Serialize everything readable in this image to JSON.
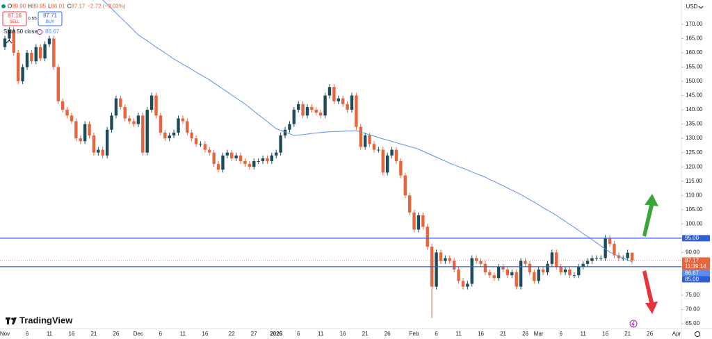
{
  "header": {
    "ohlc": [
      "O",
      "89.90",
      "H",
      "89.95",
      "L",
      "86.01",
      "C",
      "87.17",
      "−2.72 (−3.03%)"
    ]
  },
  "trade": {
    "sell_price": "87.16",
    "sell": "SELL",
    "spread": "0.55",
    "buy_price": "87.71",
    "buy": "BUY"
  },
  "brand": "TradingView",
  "chart_data": {
    "type": "candlestick",
    "currency": "USD",
    "categories": [
      "Nov",
      null,
      null,
      null,
      null,
      "6",
      null,
      null,
      null,
      null,
      "11",
      null,
      null,
      null,
      null,
      "16",
      null,
      null,
      null,
      null,
      "21",
      null,
      null,
      null,
      null,
      "26",
      null,
      null,
      null,
      null,
      "Dec",
      null,
      null,
      null,
      null,
      "6",
      null,
      null,
      null,
      null,
      "11",
      null,
      null,
      null,
      null,
      "16",
      null,
      null,
      null,
      null,
      null,
      "22",
      null,
      null,
      null,
      null,
      "27",
      null,
      null,
      null,
      null,
      "2026",
      null,
      null,
      null,
      null,
      "6",
      null,
      null,
      null,
      null,
      "11",
      null,
      null,
      null,
      null,
      "16",
      null,
      null,
      null,
      null,
      "21",
      null,
      null,
      null,
      null,
      "26",
      null,
      null,
      null,
      null,
      null,
      "Feb",
      null,
      null,
      null,
      null,
      "6",
      null,
      null,
      null,
      null,
      "11",
      null,
      null,
      null,
      null,
      "16",
      null,
      null,
      null,
      null,
      "21",
      null,
      null,
      null,
      null,
      "26",
      null,
      null,
      "Mar",
      null,
      null,
      null,
      null,
      "6",
      null,
      null,
      null,
      null,
      "11",
      null,
      null,
      null,
      null,
      "16",
      null,
      null,
      null,
      null,
      "21",
      null,
      null,
      null,
      null,
      "26",
      null,
      null,
      null,
      null,
      null,
      "Apr"
    ],
    "open": [
      162,
      165,
      168,
      160,
      150,
      155,
      160,
      157,
      162,
      158,
      163,
      165,
      155,
      143,
      140,
      138,
      136,
      130,
      129,
      135,
      131,
      125,
      126,
      124,
      133,
      138,
      144,
      141,
      137,
      136,
      135,
      138,
      125,
      140,
      145,
      138,
      132,
      130,
      131,
      132,
      137,
      136,
      132,
      130,
      128,
      128,
      126,
      125,
      121,
      119,
      124,
      125,
      123,
      124,
      122,
      121,
      120,
      122,
      122,
      123,
      122,
      124,
      125,
      131,
      133,
      135,
      140,
      142,
      138,
      141,
      140,
      139,
      138,
      145,
      148,
      143,
      144,
      142,
      140,
      145,
      134,
      127,
      131,
      128,
      126,
      126,
      118,
      124,
      126,
      122,
      117,
      110,
      104,
      98,
      103,
      99,
      92,
      78,
      90,
      87,
      88,
      87,
      84,
      80,
      78,
      79,
      88,
      87,
      86,
      83,
      82,
      81,
      85,
      84,
      82,
      83,
      78,
      87,
      86,
      83,
      80,
      84,
      83,
      86,
      90,
      85,
      83,
      84,
      82,
      82,
      85,
      86,
      87,
      88,
      88,
      88,
      95,
      93,
      89,
      88,
      88,
      89.9,
      null,
      null,
      null,
      null,
      null,
      null,
      null,
      null,
      null,
      null
    ],
    "high": [
      166,
      169,
      169,
      161,
      156,
      161,
      161,
      163,
      163,
      164,
      166,
      166,
      156,
      144,
      141,
      139,
      137,
      131,
      136,
      136,
      132,
      127,
      127,
      134,
      139,
      145,
      145,
      142,
      138,
      137,
      139,
      139,
      141,
      146,
      146,
      139,
      133,
      132,
      133,
      138,
      138,
      137,
      133,
      131,
      129,
      129,
      127,
      126,
      122,
      125,
      126,
      126,
      125,
      125,
      123,
      122,
      123,
      123,
      124,
      124,
      125,
      126,
      132,
      134,
      136,
      141,
      143,
      143,
      142,
      142,
      141,
      140,
      146,
      149,
      149,
      145,
      145,
      143,
      146,
      146,
      135,
      132,
      132,
      129,
      127,
      127,
      125,
      127,
      127,
      123,
      118,
      111,
      105,
      104,
      104,
      100,
      93,
      91,
      91,
      89,
      89,
      88,
      85,
      81,
      80,
      89,
      89,
      88,
      87,
      84,
      83,
      86,
      86,
      85,
      84,
      84,
      88,
      88,
      87,
      84,
      85,
      85,
      87,
      91,
      91,
      86,
      85,
      85,
      83,
      86,
      87,
      88,
      89,
      89,
      89,
      96,
      96,
      94,
      90,
      89,
      91,
      89.95,
      null,
      null,
      null,
      null,
      null,
      null,
      null,
      null,
      null,
      null
    ],
    "low": [
      161,
      164,
      159,
      149,
      149,
      154,
      156,
      156,
      157,
      157,
      162,
      154,
      142,
      139,
      137,
      135,
      129,
      128,
      128,
      130,
      124,
      124,
      123,
      123,
      132,
      137,
      140,
      136,
      135,
      134,
      134,
      124,
      124,
      139,
      137,
      131,
      129,
      129,
      130,
      131,
      135,
      131,
      129,
      127,
      127,
      125,
      124,
      120,
      118,
      118,
      123,
      122,
      122,
      121,
      120,
      119,
      119,
      121,
      121,
      121,
      121,
      123,
      124,
      130,
      132,
      134,
      139,
      137,
      137,
      139,
      138,
      137,
      137,
      144,
      142,
      142,
      141,
      139,
      139,
      133,
      126,
      126,
      127,
      125,
      125,
      117,
      117,
      123,
      121,
      116,
      109,
      103,
      97,
      97,
      98,
      91,
      67,
      77,
      86,
      86,
      86,
      83,
      79,
      77,
      77,
      78,
      86,
      85,
      82,
      81,
      80,
      80,
      83,
      81,
      81,
      77,
      77,
      85,
      82,
      79,
      79,
      82,
      82,
      85,
      84,
      82,
      82,
      81,
      81,
      81,
      84,
      85,
      86,
      87,
      87,
      87,
      92,
      88,
      87,
      87,
      87,
      86.01,
      null,
      null,
      null,
      null,
      null,
      null,
      null,
      null,
      null,
      null
    ],
    "close": [
      165,
      168,
      160,
      150,
      155,
      160,
      157,
      162,
      158,
      163,
      165,
      155,
      143,
      140,
      138,
      136,
      130,
      129,
      135,
      131,
      125,
      126,
      124,
      133,
      138,
      144,
      141,
      137,
      136,
      135,
      138,
      125,
      140,
      145,
      138,
      132,
      130,
      131,
      132,
      137,
      136,
      132,
      130,
      128,
      128,
      126,
      125,
      121,
      119,
      124,
      125,
      123,
      124,
      122,
      121,
      120,
      122,
      122,
      123,
      122,
      124,
      125,
      131,
      133,
      135,
      140,
      142,
      138,
      141,
      140,
      139,
      138,
      145,
      148,
      143,
      144,
      142,
      140,
      145,
      134,
      127,
      131,
      128,
      126,
      126,
      118,
      124,
      126,
      122,
      117,
      110,
      104,
      98,
      103,
      99,
      92,
      78,
      90,
      87,
      88,
      87,
      84,
      80,
      78,
      79,
      88,
      87,
      86,
      83,
      82,
      81,
      85,
      84,
      82,
      83,
      78,
      87,
      86,
      83,
      80,
      84,
      83,
      86,
      90,
      85,
      83,
      84,
      82,
      82,
      85,
      86,
      87,
      88,
      88,
      88,
      95,
      93,
      89,
      88,
      88,
      89.9,
      87.17,
      null,
      null,
      null,
      null,
      null,
      null,
      null,
      null,
      null,
      null
    ],
    "up_color": "#1d4b59",
    "down_color": "#e8643c",
    "sma": {
      "name": "SMA 50 close",
      "color": "#5b8def",
      "value_label": "86.67",
      "values": [
        null,
        null,
        null,
        null,
        null,
        null,
        null,
        null,
        null,
        null,
        null,
        null,
        null,
        null,
        null,
        null,
        null,
        null,
        null,
        null,
        null,
        null,
        178.5,
        177,
        175.5,
        173.9,
        172.4,
        170.9,
        169.4,
        167.8,
        166.3,
        165.2,
        164.2,
        163.1,
        162,
        161,
        159.9,
        158.9,
        157.8,
        156.9,
        156,
        155.1,
        154.2,
        153.2,
        152.3,
        151.4,
        150.5,
        149.4,
        148.4,
        147.3,
        146.3,
        145.2,
        144.1,
        143.1,
        142,
        140.8,
        139.5,
        138.3,
        137.1,
        135.9,
        134.6,
        133.4,
        132.8,
        132.2,
        131.6,
        131,
        131.2,
        131.3,
        131.5,
        131.7,
        131.9,
        132,
        132.2,
        132.3,
        132.4,
        132.4,
        132.5,
        132.6,
        132.6,
        132.7,
        132.2,
        131.7,
        131.2,
        130.8,
        130.3,
        129.8,
        129.4,
        128.9,
        128.5,
        128,
        127.6,
        127.1,
        126.7,
        126.2,
        125.5,
        124.8,
        124.1,
        123.4,
        122.7,
        122,
        121.3,
        120.7,
        120.1,
        119.5,
        118.9,
        118.2,
        117.6,
        117,
        116.4,
        115.6,
        114.9,
        114.1,
        113.4,
        112.6,
        111.8,
        111.1,
        110.3,
        109.4,
        108.5,
        107.6,
        106.7,
        105.7,
        104.8,
        103.9,
        103,
        101.9,
        100.9,
        99.8,
        98.8,
        97.7,
        96.6,
        95.6,
        94.5,
        93.4,
        92.3,
        91.2,
        90.1,
        89.4,
        88.7,
        88,
        87.4,
        86.67,
        null,
        null,
        null,
        null,
        null,
        null,
        null,
        null,
        null,
        null
      ]
    },
    "ylim": [
      63.3,
      178.5
    ],
    "yticks": [
      {
        "value": 65,
        "label": "65.00"
      },
      {
        "value": 70,
        "label": "70.00"
      },
      {
        "value": 75,
        "label": "75.00"
      },
      {
        "value": 80,
        "label": "80.00"
      },
      {
        "value": 85,
        "label": "85.00"
      },
      {
        "value": 90,
        "label": "90.00"
      },
      {
        "value": 95,
        "label": "95.00"
      },
      {
        "value": 100,
        "label": "100.00"
      },
      {
        "value": 105,
        "label": "105.00"
      },
      {
        "value": 110,
        "label": "110.00"
      },
      {
        "value": 115,
        "label": "115.00"
      },
      {
        "value": 120,
        "label": "120.00"
      },
      {
        "value": 125,
        "label": "125.00"
      },
      {
        "value": 130,
        "label": "130.00"
      },
      {
        "value": 135,
        "label": "135.00"
      },
      {
        "value": 140,
        "label": "140.00"
      },
      {
        "value": 145,
        "label": "145.00"
      },
      {
        "value": 150,
        "label": "150.00"
      },
      {
        "value": 155,
        "label": "155.00"
      },
      {
        "value": 160,
        "label": "160.00"
      },
      {
        "value": 165,
        "label": "165.00"
      },
      {
        "value": 170,
        "label": "170.00"
      }
    ],
    "hlines": [
      {
        "value": 95,
        "label": "95.00",
        "color": "#2f5fd6"
      },
      {
        "value": 85,
        "label": "85.00",
        "color": "#2f5fd6"
      }
    ],
    "last_price": {
      "value": 87.17,
      "label": "87.17",
      "countdown": "11:39:14",
      "color": "#e8643c"
    }
  }
}
